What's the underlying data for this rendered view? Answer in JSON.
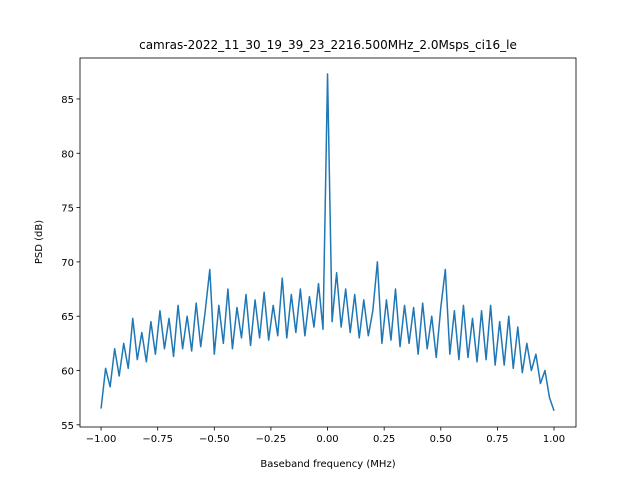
{
  "chart_data": {
    "type": "line",
    "title": "camras-2022_11_30_19_39_23_2216.500MHz_2.0Msps_ci16_le",
    "xlabel": "Baseband frequency (MHz)",
    "ylabel": "PSD (dB)",
    "xlim": [
      -1.093,
      1.097
    ],
    "ylim": [
      54.8,
      88.77
    ],
    "xticks": [
      {
        "value": -1,
        "label": "−1.00"
      },
      {
        "value": -0.75,
        "label": "−0.75"
      },
      {
        "value": -0.5,
        "label": "−0.50"
      },
      {
        "value": -0.25,
        "label": "−0.25"
      },
      {
        "value": 0,
        "label": "0.00"
      },
      {
        "value": 0.25,
        "label": "0.25"
      },
      {
        "value": 0.5,
        "label": "0.50"
      },
      {
        "value": 0.75,
        "label": "0.75"
      },
      {
        "value": 1,
        "label": "1.00"
      }
    ],
    "yticks": [
      55,
      60,
      65,
      70,
      75,
      80,
      85
    ],
    "series": [
      {
        "color": "#1f77b4",
        "x": [
          -1.0,
          -0.98,
          -0.96,
          -0.94,
          -0.92,
          -0.9,
          -0.88,
          -0.86,
          -0.84,
          -0.82,
          -0.8,
          -0.78,
          -0.76,
          -0.74,
          -0.72,
          -0.7,
          -0.68,
          -0.66,
          -0.64,
          -0.62,
          -0.6,
          -0.58,
          -0.56,
          -0.54,
          -0.52,
          -0.5,
          -0.48,
          -0.46,
          -0.44,
          -0.42,
          -0.4,
          -0.38,
          -0.36,
          -0.34,
          -0.32,
          -0.3,
          -0.28,
          -0.26,
          -0.24,
          -0.22,
          -0.2,
          -0.18,
          -0.16,
          -0.14,
          -0.12,
          -0.1,
          -0.08,
          -0.06,
          -0.04,
          -0.02,
          0.0,
          0.02,
          0.04,
          0.06,
          0.08,
          0.1,
          0.12,
          0.14,
          0.16,
          0.18,
          0.2,
          0.22,
          0.24,
          0.26,
          0.28,
          0.3,
          0.32,
          0.34,
          0.36,
          0.38,
          0.4,
          0.42,
          0.44,
          0.46,
          0.48,
          0.5,
          0.52,
          0.54,
          0.56,
          0.58,
          0.6,
          0.62,
          0.64,
          0.66,
          0.68,
          0.7,
          0.72,
          0.74,
          0.76,
          0.78,
          0.8,
          0.82,
          0.84,
          0.86,
          0.88,
          0.9,
          0.92,
          0.94,
          0.96,
          0.98,
          1.0
        ],
        "values": [
          56.5,
          60.2,
          58.5,
          62.0,
          59.5,
          62.5,
          60.2,
          64.8,
          61.0,
          63.5,
          60.8,
          64.5,
          61.5,
          65.5,
          62.0,
          64.8,
          61.3,
          66.0,
          62.0,
          65.0,
          61.8,
          66.2,
          62.2,
          65.5,
          69.3,
          61.5,
          66.0,
          62.5,
          67.5,
          62.0,
          65.8,
          63.0,
          67.0,
          62.3,
          66.5,
          63.0,
          67.2,
          62.8,
          66.0,
          63.2,
          68.5,
          63.0,
          67.0,
          63.5,
          67.5,
          63.2,
          66.8,
          64.0,
          68.0,
          63.8,
          87.3,
          64.5,
          69.0,
          64.0,
          67.5,
          63.5,
          67.0,
          63.0,
          66.5,
          63.2,
          65.5,
          70.0,
          62.5,
          66.5,
          62.8,
          67.5,
          62.2,
          66.0,
          62.5,
          65.8,
          61.5,
          66.2,
          62.0,
          65.0,
          61.2,
          65.8,
          69.3,
          61.5,
          65.5,
          61.0,
          66.0,
          61.2,
          64.8,
          60.8,
          65.5,
          61.0,
          66.0,
          60.5,
          64.5,
          60.5,
          65.0,
          60.2,
          64.0,
          59.8,
          62.5,
          60.0,
          61.5,
          58.8,
          60.0,
          57.5,
          56.3
        ]
      }
    ]
  }
}
